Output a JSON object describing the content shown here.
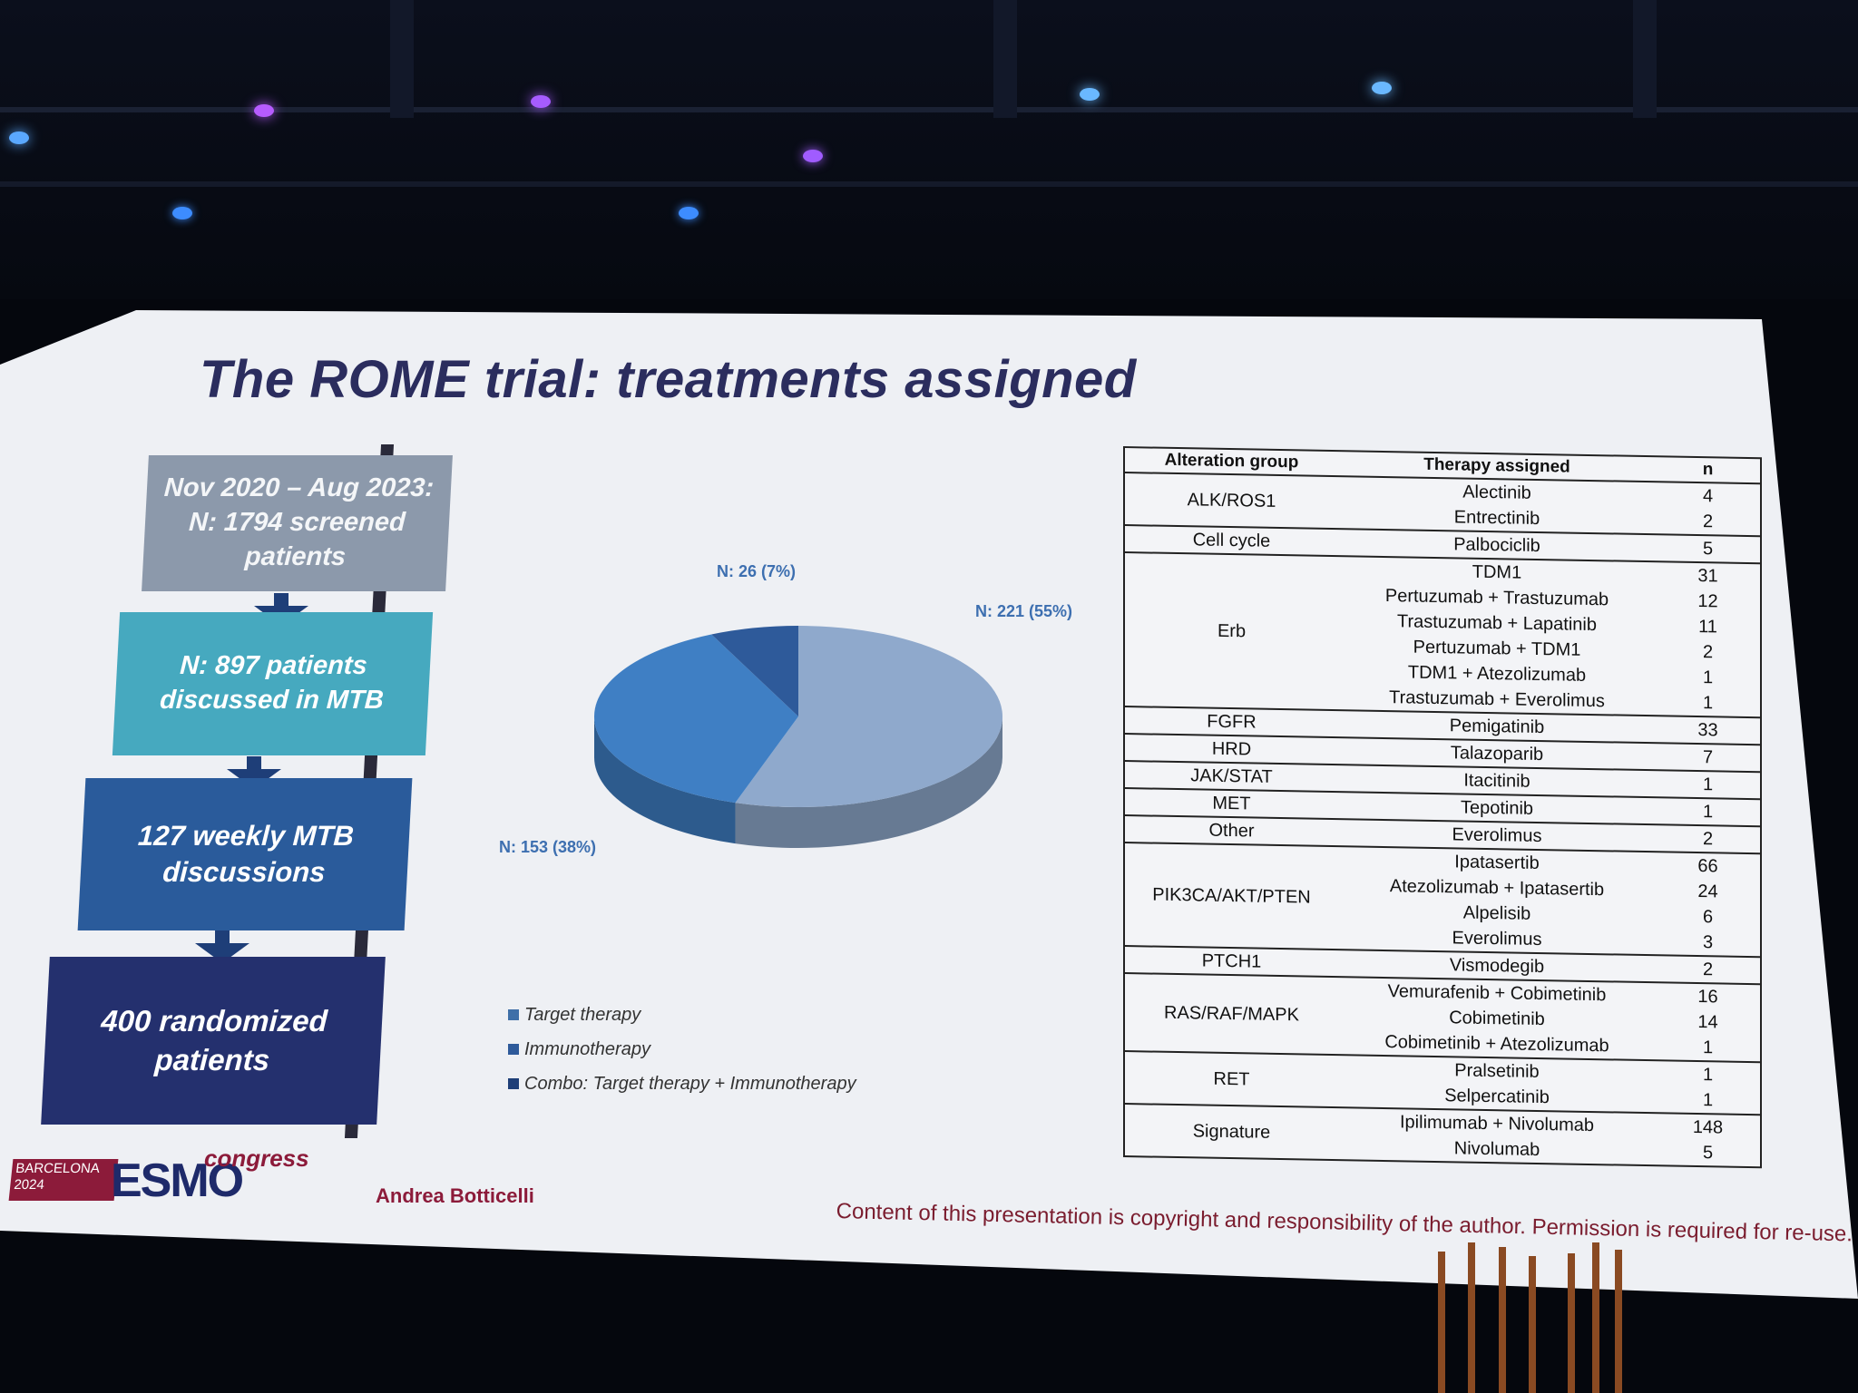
{
  "slide": {
    "title": "The ROME trial: treatments assigned"
  },
  "flow": {
    "box1": "Nov 2020 – Aug 2023: N: 1794 screened patients",
    "box2": "N: 897 patients discussed in MTB",
    "box3": "127 weekly MTB discussions",
    "box4": "400 randomized patients"
  },
  "chart_data": {
    "type": "pie",
    "slices": [
      {
        "label": "N: 221 (55%)",
        "value": 55,
        "color": "#8fa9cc"
      },
      {
        "label": "N: 153 (38%)",
        "value": 38,
        "color": "#3f7fc4"
      },
      {
        "label": "N: 26 (7%)",
        "value": 7,
        "color": "#2e5a9a"
      }
    ],
    "legend": [
      "Target therapy",
      "Immunotherapy",
      "Combo: Target therapy + Immunotherapy"
    ],
    "legend_colors": [
      "#3f6fa8",
      "#2e5a9a",
      "#1f3f78"
    ]
  },
  "table": {
    "headers": [
      "Alteration group",
      "Therapy assigned",
      "n"
    ],
    "groups": [
      {
        "group": "ALK/ROS1",
        "rows": [
          [
            "Alectinib",
            "4"
          ],
          [
            "Entrectinib",
            "2"
          ]
        ]
      },
      {
        "group": "Cell cycle",
        "rows": [
          [
            "Palbociclib",
            "5"
          ]
        ]
      },
      {
        "group": "Erb",
        "rows": [
          [
            "TDM1",
            "31"
          ],
          [
            "Pertuzumab + Trastuzumab",
            "12"
          ],
          [
            "Trastuzumab + Lapatinib",
            "11"
          ],
          [
            "Pertuzumab + TDM1",
            "2"
          ],
          [
            "TDM1 + Atezolizumab",
            "1"
          ],
          [
            "Trastuzumab + Everolimus",
            "1"
          ]
        ]
      },
      {
        "group": "FGFR",
        "rows": [
          [
            "Pemigatinib",
            "33"
          ]
        ]
      },
      {
        "group": "HRD",
        "rows": [
          [
            "Talazoparib",
            "7"
          ]
        ]
      },
      {
        "group": "JAK/STAT",
        "rows": [
          [
            "Itacitinib",
            "1"
          ]
        ]
      },
      {
        "group": "MET",
        "rows": [
          [
            "Tepotinib",
            "1"
          ]
        ]
      },
      {
        "group": "Other",
        "rows": [
          [
            "Everolimus",
            "2"
          ]
        ]
      },
      {
        "group": "PIK3CA/AKT/PTEN",
        "rows": [
          [
            "Ipatasertib",
            "66"
          ],
          [
            "Atezolizumab + Ipatasertib",
            "24"
          ],
          [
            "Alpelisib",
            "6"
          ],
          [
            "Everolimus",
            "3"
          ]
        ]
      },
      {
        "group": "PTCH1",
        "rows": [
          [
            "Vismodegib",
            "2"
          ]
        ]
      },
      {
        "group": "RAS/RAF/MAPK",
        "rows": [
          [
            "Vemurafenib + Cobimetinib",
            "16"
          ],
          [
            "Cobimetinib",
            "14"
          ],
          [
            "Cobimetinib + Atezolizumab",
            "1"
          ]
        ]
      },
      {
        "group": "RET",
        "rows": [
          [
            "Pralsetinib",
            "1"
          ],
          [
            "Selpercatinib",
            "1"
          ]
        ]
      },
      {
        "group": "Signature",
        "rows": [
          [
            "Ipilimumab + Nivolumab",
            "148"
          ],
          [
            "Nivolumab",
            "5"
          ]
        ]
      }
    ]
  },
  "footer": {
    "city": "BARCELONA",
    "year": "2024",
    "logo": "ESMO",
    "congress": "congress",
    "author": "Andrea Botticelli",
    "copyright": "Content of this presentation is copyright and responsibility of the author. Permission is required for re-use."
  }
}
